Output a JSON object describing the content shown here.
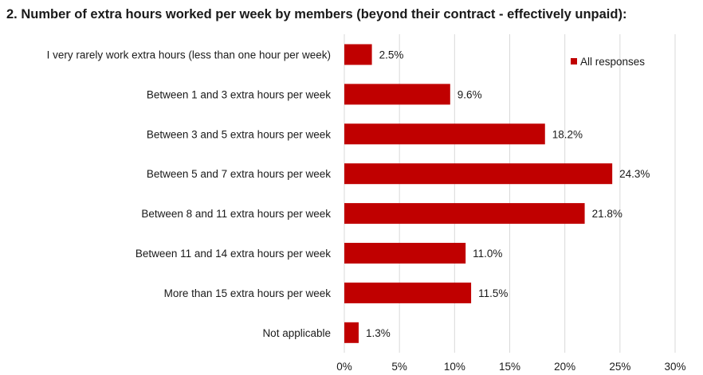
{
  "chart_data": {
    "type": "bar",
    "orientation": "horizontal",
    "title": "2. Number of extra hours worked per week by members (beyond their contract - effectively unpaid):",
    "categories": [
      "I very rarely work extra hours (less than one hour per week)",
      "Between 1 and 3 extra hours per week",
      "Between 3 and 5 extra hours per week",
      "Between 5 and 7 extra hours per week",
      "Between 8 and 11 extra hours per week",
      "Between 11 and 14 extra hours per week",
      "More than 15 extra hours per week",
      "Not applicable"
    ],
    "series": [
      {
        "name": "All responses",
        "color": "#c00000",
        "values": [
          2.5,
          9.6,
          18.2,
          24.3,
          21.8,
          11.0,
          11.5,
          1.3
        ],
        "labels": [
          "2.5%",
          "9.6%",
          "18.2%",
          "24.3%",
          "21.8%",
          "11.0%",
          "11.5%",
          "1.3%"
        ]
      }
    ],
    "xlim": [
      0,
      30
    ],
    "xticks": [
      0,
      5,
      10,
      15,
      20,
      25,
      30
    ],
    "xtick_labels": [
      "0%",
      "5%",
      "10%",
      "15%",
      "20%",
      "25%",
      "30%"
    ],
    "grid": true,
    "legend": "top-right",
    "xlabel": "",
    "ylabel": ""
  }
}
